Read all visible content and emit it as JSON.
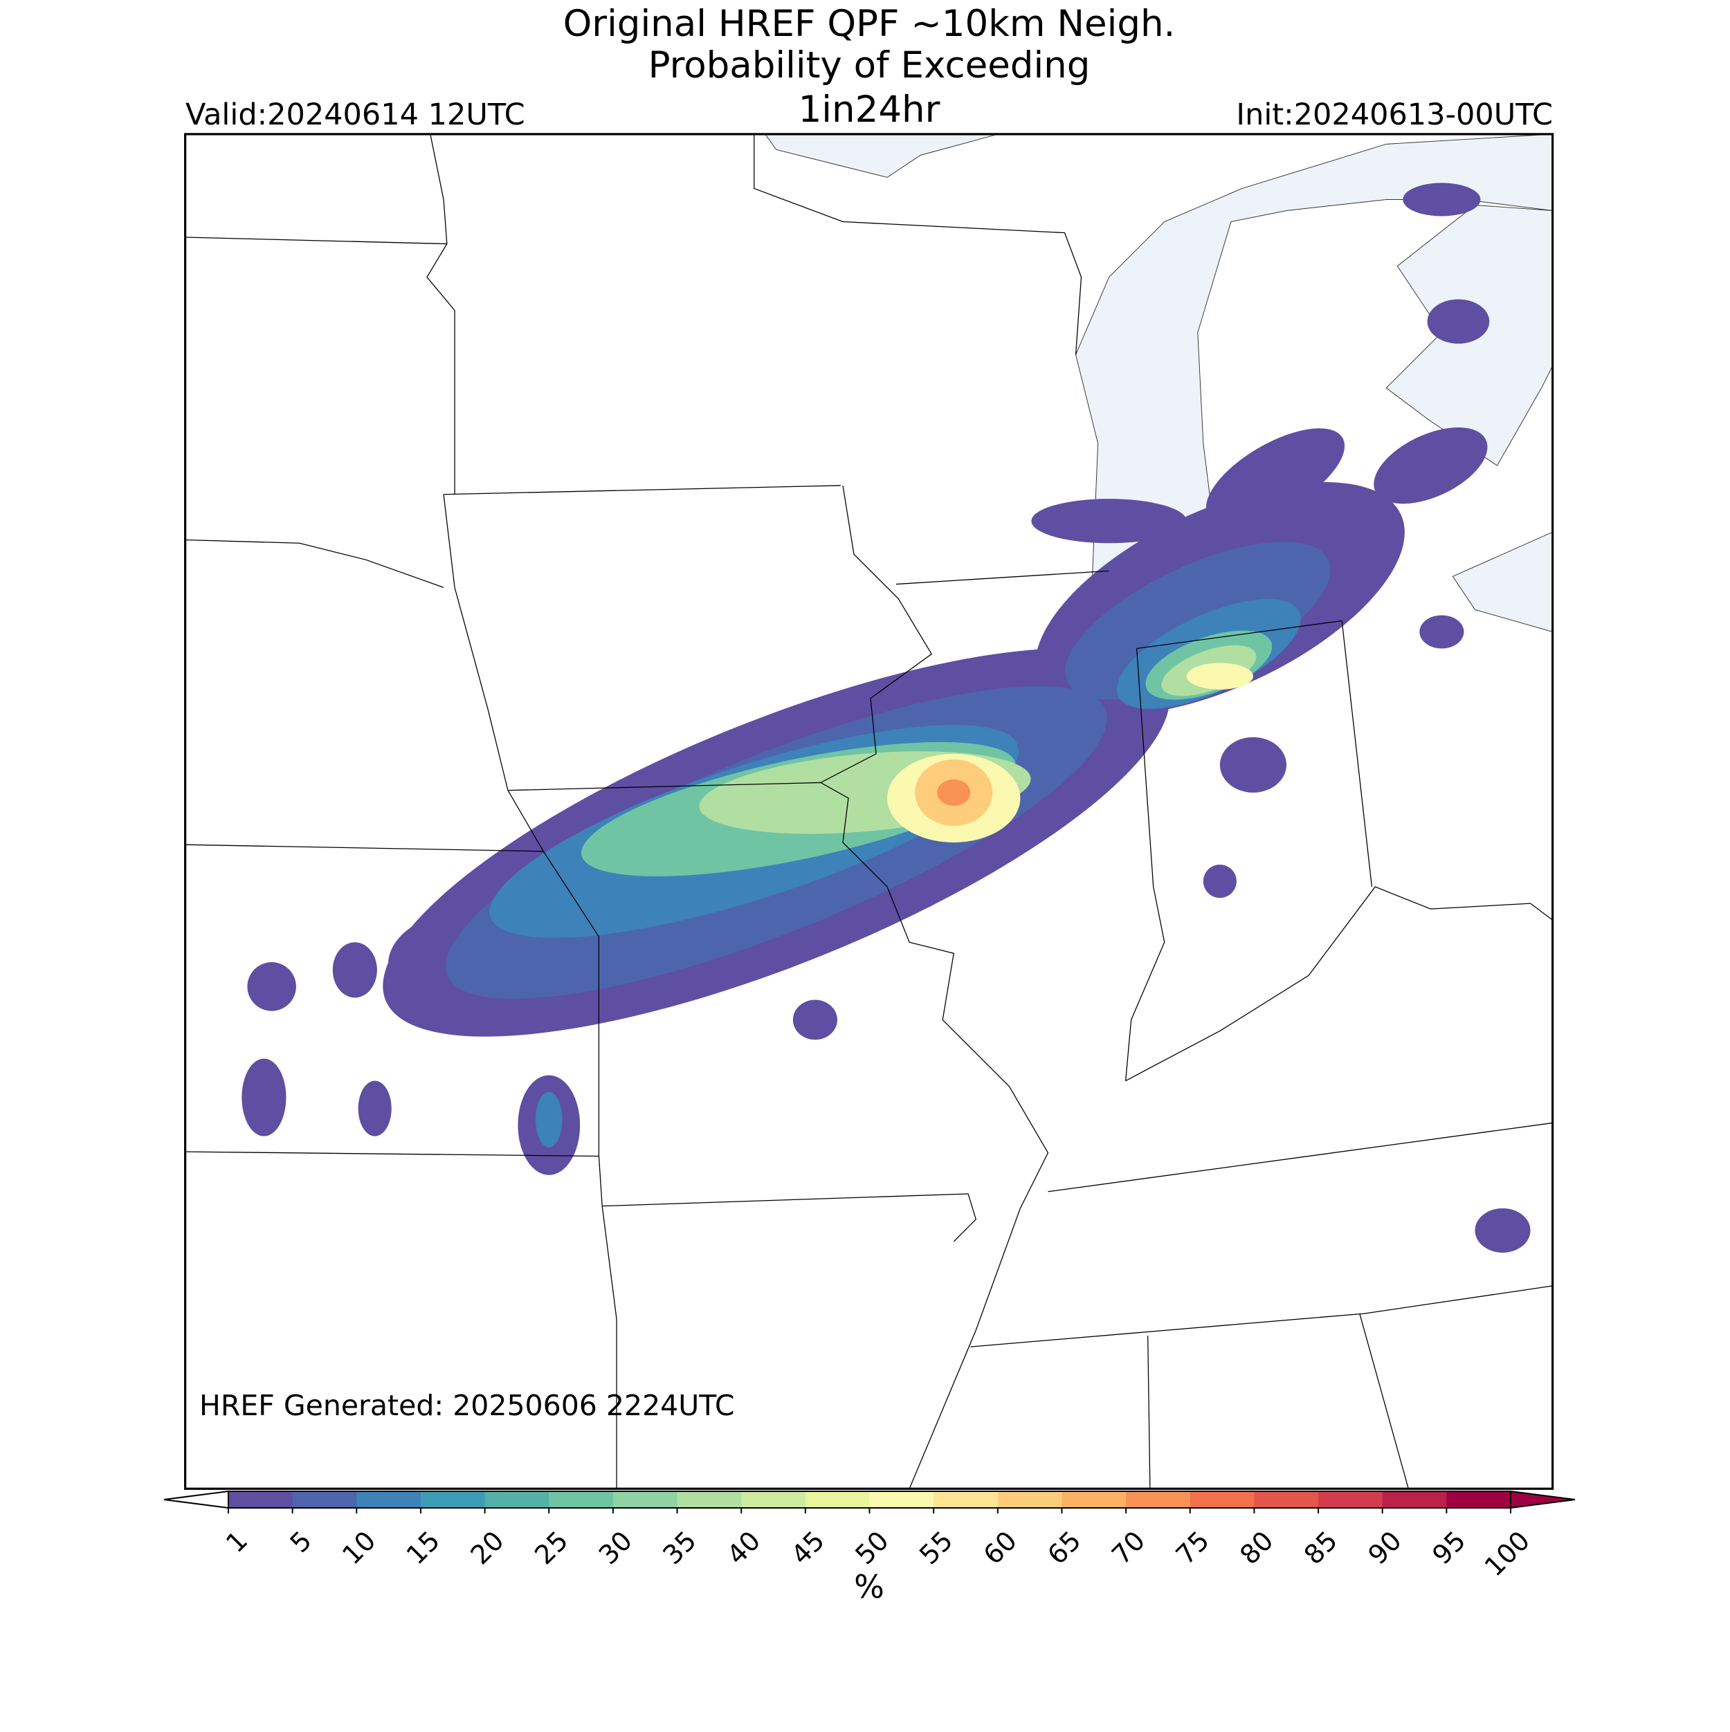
{
  "header": {
    "title": [
      "Original HREF QPF ~10km Neigh.",
      "Probability of Exceeding",
      "1in24hr"
    ],
    "valid": "Valid:20240614 12UTC",
    "init": "Init:20240613-00UTC"
  },
  "footer": {
    "generated": "HREF Generated: 20250606 2224UTC"
  },
  "colorbar": {
    "label": "%",
    "ticks": [
      1,
      5,
      10,
      15,
      20,
      25,
      30,
      35,
      40,
      45,
      50,
      55,
      60,
      65,
      70,
      75,
      80,
      85,
      90,
      95,
      100
    ],
    "colors": [
      "#5e4fa2",
      "#4d65ad",
      "#3d82b9",
      "#3e9db6",
      "#54b1a8",
      "#6fc4a4",
      "#8fd2a4",
      "#b1dfa2",
      "#cfeb9d",
      "#e8f59c",
      "#fbf8b0",
      "#fee593",
      "#fdcd7b",
      "#fdb165",
      "#f99355",
      "#f3714b",
      "#e4564a",
      "#d33c4e",
      "#bb2149",
      "#9e0142"
    ],
    "under_color": "#ffffff",
    "over_color": "#9e0142"
  }
}
